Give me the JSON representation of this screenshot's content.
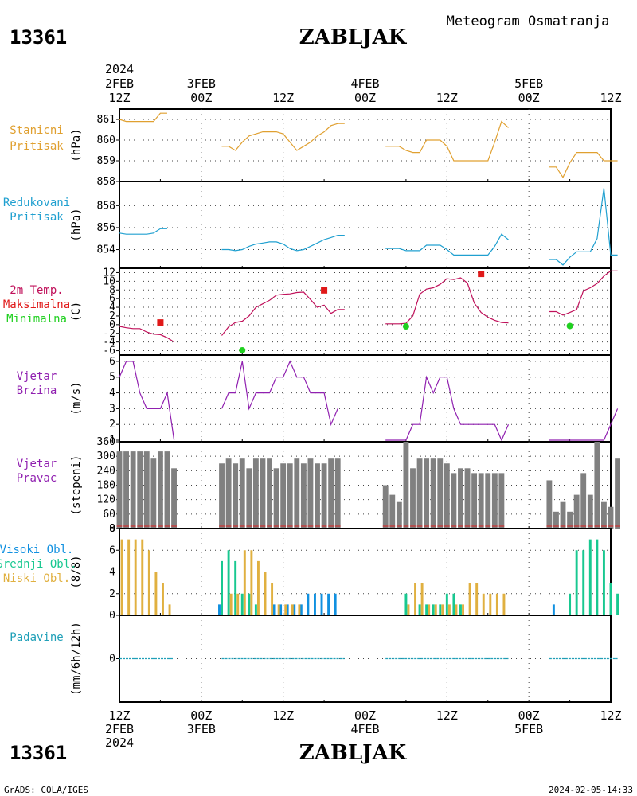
{
  "header": {
    "station_id": "13361",
    "station_name": "ZABLJAK",
    "title": "Meteogram Osmatranja"
  },
  "footer": {
    "station_id": "13361",
    "station_name": "ZABLJAK",
    "credit": "GrADS: COLA/IGES",
    "timestamp": "2024-02-05-14:33"
  },
  "time_axis": {
    "year": "2024",
    "start_hour": 12,
    "end_hour": 84,
    "labels": [
      {
        "hour": 12,
        "top": "12Z",
        "mid": "2FEB",
        "year": "2024"
      },
      {
        "hour": 24,
        "top": "00Z",
        "mid": "3FEB"
      },
      {
        "hour": 36,
        "top": "12Z"
      },
      {
        "hour": 48,
        "top": "00Z",
        "mid": "4FEB"
      },
      {
        "hour": 60,
        "top": "12Z"
      },
      {
        "hour": 72,
        "top": "00Z",
        "mid": "5FEB"
      },
      {
        "hour": 84,
        "top": "12Z"
      }
    ]
  },
  "colors": {
    "pressure_station": "#e0a030",
    "pressure_reduced": "#20a0d0",
    "temp_line": "#c0105a",
    "temp_max": "#e01818",
    "temp_min": "#20d020",
    "wind": "#9020b0",
    "wind_dir": "#808080",
    "cloud_high": "#1090e0",
    "cloud_mid": "#18c890",
    "cloud_low": "#e0b040",
    "precip": "#20a0b8"
  },
  "panels": {
    "station_pressure": {
      "labels": [
        "Stanicni",
        "Pritisak"
      ],
      "unit": "(hPa)"
    },
    "reduced_pressure": {
      "labels": [
        "Redukovani",
        "Pritisak"
      ],
      "unit": "(hPa)"
    },
    "temperature": {
      "labels": [
        "2m Temp.",
        "Maksimalna",
        "Minimalna"
      ],
      "unit": "(C)"
    },
    "wind_speed": {
      "labels": [
        "Vjetar",
        "Brzina"
      ],
      "unit": "(m/s)"
    },
    "wind_direction": {
      "labels": [
        "Vjetar",
        "Pravac"
      ],
      "unit": "(stepeni)"
    },
    "clouds": {
      "labels": [
        "Visoki Obl.",
        "Srednji Obl.",
        "Niski Obl."
      ],
      "unit": "(8/8)"
    },
    "precipitation": {
      "labels": [
        "Padavine"
      ],
      "unit": "(mm/6h/12h)"
    }
  },
  "chart_data": [
    {
      "type": "line",
      "name": "station_pressure",
      "ylim": [
        858,
        861.5
      ],
      "yticks": [
        858,
        859,
        860,
        861
      ],
      "segments": [
        {
          "x": [
            12,
            13,
            14,
            15,
            16,
            17,
            18,
            19
          ],
          "y": [
            861.0,
            860.9,
            860.9,
            860.9,
            860.9,
            860.9,
            861.3,
            861.3
          ]
        },
        {
          "x": [
            27,
            28,
            29,
            30,
            31,
            32,
            33,
            34,
            35,
            36,
            37,
            38,
            39,
            40,
            41,
            42,
            43,
            44,
            45
          ],
          "y": [
            859.7,
            859.7,
            859.5,
            859.9,
            860.2,
            860.3,
            860.4,
            860.4,
            860.4,
            860.3,
            859.9,
            859.5,
            859.7,
            859.9,
            860.2,
            860.4,
            860.7,
            860.8,
            860.8
          ]
        },
        {
          "x": [
            51,
            52,
            53,
            54,
            55,
            56,
            57,
            58,
            59,
            60,
            61,
            62,
            63,
            64,
            65,
            66,
            67,
            68,
            69
          ],
          "y": [
            859.7,
            859.7,
            859.7,
            859.5,
            859.4,
            859.4,
            860.0,
            860.0,
            860.0,
            859.7,
            859.0,
            859.0,
            859.0,
            859.0,
            859.0,
            859.0,
            859.9,
            860.9,
            860.6
          ]
        },
        {
          "x": [
            75,
            76,
            77,
            78,
            79,
            80,
            81,
            82,
            83,
            84,
            85
          ],
          "y": [
            858.7,
            858.7,
            858.2,
            858.9,
            859.4,
            859.4,
            859.4,
            859.4,
            859.0,
            859.0,
            859.0
          ]
        }
      ]
    },
    {
      "type": "line",
      "name": "reduced_pressure",
      "ylim": [
        852.3,
        860.2
      ],
      "yticks": [
        854,
        856,
        858
      ],
      "segments": [
        {
          "x": [
            12,
            13,
            14,
            15,
            16,
            17,
            18,
            19
          ],
          "y": [
            855.5,
            855.4,
            855.4,
            855.4,
            855.4,
            855.5,
            855.9,
            855.9
          ]
        },
        {
          "x": [
            27,
            28,
            29,
            30,
            31,
            32,
            33,
            34,
            35,
            36,
            37,
            38,
            39,
            40,
            41,
            42,
            43,
            44,
            45
          ],
          "y": [
            854.0,
            854.0,
            853.9,
            854.0,
            854.3,
            854.5,
            854.6,
            854.7,
            854.7,
            854.5,
            854.1,
            853.9,
            854.0,
            854.3,
            854.6,
            854.9,
            855.1,
            855.3,
            855.3
          ]
        },
        {
          "x": [
            51,
            52,
            53,
            54,
            55,
            56,
            57,
            58,
            59,
            60,
            61,
            62,
            63,
            64,
            65,
            66,
            67,
            68,
            69
          ],
          "y": [
            854.1,
            854.1,
            854.1,
            853.9,
            853.9,
            853.9,
            854.4,
            854.4,
            854.4,
            854.0,
            853.5,
            853.5,
            853.5,
            853.5,
            853.5,
            853.5,
            854.3,
            855.4,
            854.9
          ]
        },
        {
          "x": [
            75,
            76,
            77,
            78,
            79,
            80,
            81,
            82,
            83,
            84,
            85
          ],
          "y": [
            853.1,
            853.1,
            852.6,
            853.3,
            853.8,
            853.8,
            853.8,
            855.0,
            859.6,
            853.5,
            853.5
          ]
        }
      ]
    },
    {
      "type": "line",
      "name": "temperature",
      "ylim": [
        -7,
        13
      ],
      "yticks": [
        -6,
        -4,
        -2,
        0,
        2,
        4,
        6,
        8,
        10,
        12
      ],
      "segments": [
        {
          "x": [
            12,
            13,
            14,
            15,
            16,
            17,
            18,
            19,
            20
          ],
          "y": [
            -0.4,
            -0.7,
            -0.9,
            -0.9,
            -1.7,
            -2.2,
            -2.3,
            -3.0,
            -4.0
          ]
        },
        {
          "x": [
            27,
            28,
            29,
            30,
            31,
            32,
            33,
            34,
            35,
            36,
            37,
            38,
            39,
            40,
            41,
            42,
            43,
            44,
            45
          ],
          "y": [
            -2.5,
            -0.5,
            0.5,
            0.8,
            2.0,
            4.0,
            4.8,
            5.6,
            6.8,
            7.0,
            7.1,
            7.4,
            7.5,
            5.8,
            4.0,
            4.5,
            2.6,
            3.5,
            3.5
          ]
        },
        {
          "x": [
            51,
            52,
            53,
            54,
            55,
            56,
            57,
            58,
            59,
            60,
            61,
            62,
            63,
            64,
            65,
            66,
            67,
            68,
            69
          ],
          "y": [
            0.2,
            0.2,
            0.2,
            0.3,
            2.0,
            7.0,
            8.2,
            8.5,
            9.3,
            10.6,
            10.4,
            10.8,
            9.6,
            5.0,
            2.8,
            1.7,
            1.0,
            0.5,
            0.4
          ]
        },
        {
          "x": [
            75,
            76,
            77,
            78,
            79,
            80,
            81,
            82,
            83,
            84,
            85
          ],
          "y": [
            3.0,
            3.0,
            2.2,
            2.8,
            3.5,
            7.8,
            8.5,
            9.5,
            11.2,
            12.4,
            12.4
          ]
        }
      ],
      "max_points": [
        {
          "x": 18,
          "y": 0.5
        },
        {
          "x": 42,
          "y": 7.9
        },
        {
          "x": 65,
          "y": 11.7
        }
      ],
      "min_points": [
        {
          "x": 30,
          "y": -5.9
        },
        {
          "x": 54,
          "y": -0.4
        },
        {
          "x": 78,
          "y": -0.3
        }
      ]
    },
    {
      "type": "line",
      "name": "wind_speed",
      "ylim": [
        0.9,
        6.4
      ],
      "yticks": [
        1,
        2,
        3,
        4,
        5,
        6
      ],
      "segments": [
        {
          "x": [
            12,
            13,
            14,
            15,
            16,
            17,
            18,
            19,
            20
          ],
          "y": [
            5.0,
            6.0,
            6.0,
            4.0,
            3.0,
            3.0,
            3.0,
            4.0,
            1.0
          ]
        },
        {
          "x": [
            27,
            28,
            29,
            30,
            31,
            32,
            33,
            34,
            35,
            36,
            37,
            38,
            39,
            40,
            41,
            42,
            43,
            44
          ],
          "y": [
            3.0,
            4.0,
            4.0,
            6.0,
            3.0,
            4.0,
            4.0,
            4.0,
            5.0,
            5.0,
            6.0,
            5.0,
            5.0,
            4.0,
            4.0,
            4.0,
            2.0,
            3.0
          ]
        },
        {
          "x": [
            51,
            52,
            53,
            54,
            55,
            56,
            57,
            58,
            59,
            60,
            61,
            62,
            63,
            64,
            65,
            66,
            67,
            68,
            69
          ],
          "y": [
            1.0,
            1.0,
            1.0,
            1.0,
            2.0,
            2.0,
            5.0,
            4.0,
            5.0,
            5.0,
            3.0,
            2.0,
            2.0,
            2.0,
            2.0,
            2.0,
            2.0,
            1.0,
            2.0
          ]
        },
        {
          "x": [
            75,
            76,
            77,
            78,
            79,
            80,
            81,
            82,
            83,
            84,
            85
          ],
          "y": [
            1.0,
            1.0,
            1.0,
            1.0,
            1.0,
            1.0,
            1.0,
            1.0,
            1.0,
            2.0,
            3.0
          ]
        }
      ]
    },
    {
      "type": "bar",
      "name": "wind_direction",
      "ylim": [
        0,
        360
      ],
      "yticks": [
        0,
        60,
        120,
        180,
        240,
        300,
        360
      ],
      "x": [
        12,
        13,
        14,
        15,
        16,
        17,
        18,
        19,
        20,
        27,
        28,
        29,
        30,
        31,
        32,
        33,
        34,
        35,
        36,
        37,
        38,
        39,
        40,
        41,
        42,
        43,
        44,
        51,
        52,
        53,
        54,
        55,
        56,
        57,
        58,
        59,
        60,
        61,
        62,
        63,
        64,
        65,
        66,
        67,
        68,
        75,
        76,
        77,
        78,
        79,
        80,
        81,
        82,
        83,
        84,
        85
      ],
      "values": [
        320,
        320,
        320,
        320,
        320,
        290,
        320,
        320,
        250,
        270,
        290,
        270,
        290,
        250,
        290,
        290,
        290,
        250,
        270,
        270,
        290,
        270,
        290,
        270,
        270,
        290,
        290,
        180,
        140,
        110,
        360,
        250,
        290,
        290,
        290,
        290,
        270,
        230,
        250,
        250,
        230,
        230,
        230,
        230,
        230,
        200,
        70,
        110,
        70,
        140,
        230,
        140,
        360,
        110,
        90,
        290
      ]
    },
    {
      "type": "bar",
      "name": "clouds",
      "ylim": [
        0,
        8
      ],
      "yticks": [
        0,
        2,
        4,
        6,
        8
      ],
      "series": [
        {
          "name": "Visoki Obl.",
          "x": [
            27,
            35,
            36,
            37,
            38,
            39,
            40,
            41,
            42,
            43,
            44,
            76
          ],
          "values": [
            1,
            1,
            1,
            1,
            1,
            1,
            2,
            2,
            2,
            2,
            2,
            1
          ]
        },
        {
          "name": "Srednji Obl.",
          "x": [
            27,
            28,
            29,
            30,
            31,
            32,
            54,
            56,
            57,
            58,
            59,
            60,
            61,
            62,
            78,
            79,
            80,
            81,
            82,
            83,
            84,
            85
          ],
          "values": [
            5,
            6,
            5,
            2,
            2,
            1,
            2,
            1,
            1,
            1,
            1,
            2,
            2,
            1,
            2,
            6,
            6,
            7,
            7,
            6,
            3,
            2
          ]
        },
        {
          "name": "Niski Obl.",
          "x": [
            12,
            13,
            14,
            15,
            16,
            17,
            18,
            19,
            28,
            29,
            30,
            31,
            32,
            33,
            34,
            35,
            36,
            37,
            38,
            54,
            55,
            56,
            57,
            58,
            59,
            60,
            61,
            62,
            63,
            64,
            65,
            66,
            67,
            68
          ],
          "values": [
            7,
            7,
            7,
            7,
            6,
            4,
            3,
            1,
            2,
            2,
            6,
            6,
            5,
            4,
            3,
            1,
            1,
            1,
            1,
            1,
            3,
            3,
            1,
            1,
            1,
            1,
            1,
            1,
            3,
            3,
            2,
            2,
            2,
            2
          ]
        }
      ]
    },
    {
      "type": "line",
      "name": "precipitation",
      "ylim": [
        -4,
        4
      ],
      "yticks": [
        0
      ],
      "segments": [
        {
          "x": [
            12,
            20
          ],
          "y": [
            0,
            0
          ]
        },
        {
          "x": [
            27,
            45
          ],
          "y": [
            0,
            0
          ]
        },
        {
          "x": [
            51,
            69
          ],
          "y": [
            0,
            0
          ]
        },
        {
          "x": [
            75,
            85
          ],
          "y": [
            0,
            0
          ]
        }
      ]
    }
  ]
}
